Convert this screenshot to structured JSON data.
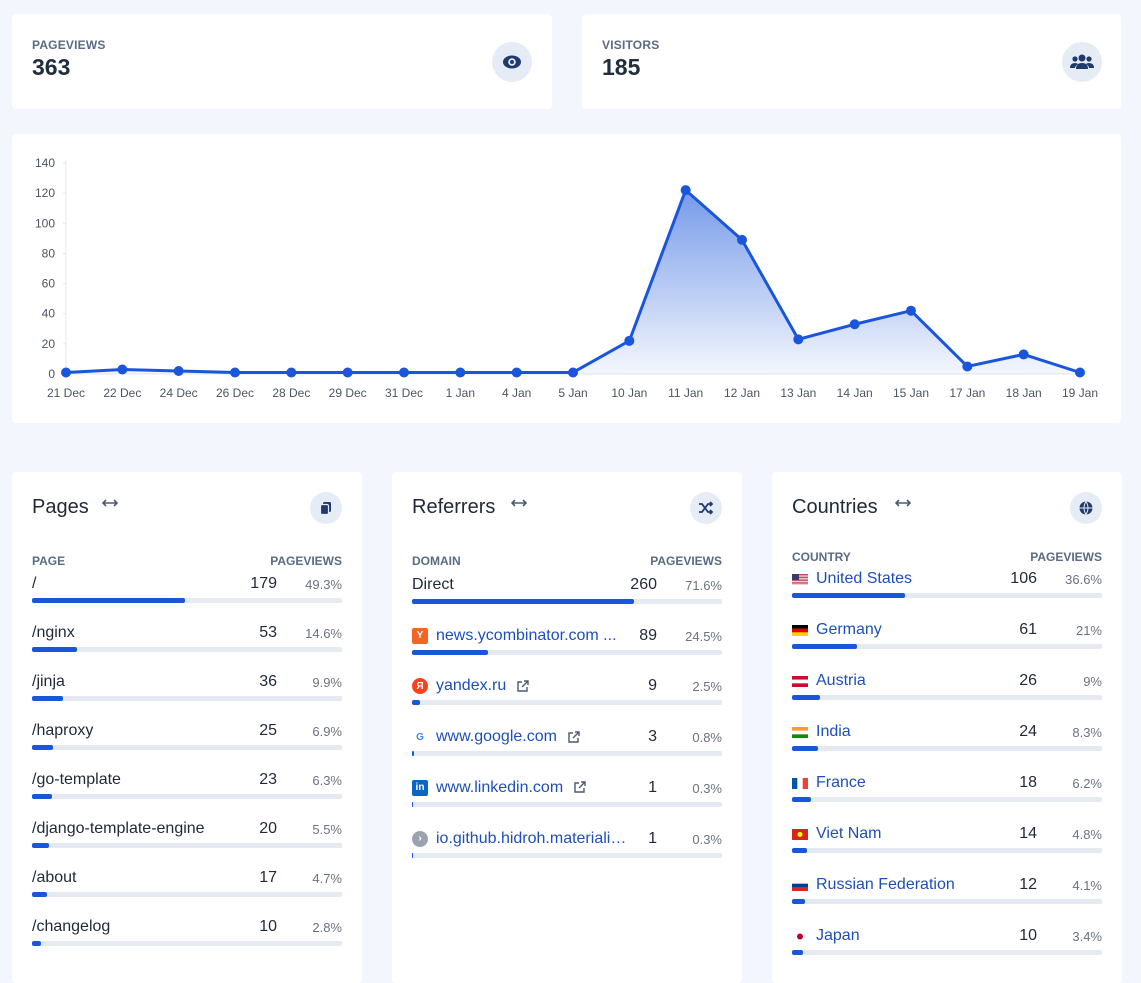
{
  "stats": [
    {
      "label": "PAGEVIEWS",
      "value": 363
    },
    {
      "label": "VISITORS",
      "value": 185
    }
  ],
  "chart_data": {
    "type": "line",
    "categories": [
      "21 Dec",
      "22 Dec",
      "24 Dec",
      "26 Dec",
      "28 Dec",
      "29 Dec",
      "31 Dec",
      "1 Jan",
      "4 Jan",
      "5 Jan",
      "10 Jan",
      "11 Jan",
      "12 Jan",
      "13 Jan",
      "14 Jan",
      "15 Jan",
      "17 Jan",
      "18 Jan",
      "19 Jan"
    ],
    "values": [
      1,
      3,
      2,
      1,
      1,
      1,
      1,
      1,
      1,
      1,
      22,
      122,
      89,
      23,
      33,
      42,
      5,
      13,
      1
    ],
    "color": "#1a56db",
    "ylim": [
      0,
      140
    ],
    "yticks": [
      0,
      20,
      40,
      60,
      80,
      100,
      120,
      140
    ],
    "grid": false,
    "area": true
  },
  "pages": {
    "title": "Pages",
    "columns": [
      "PAGE",
      "PAGEVIEWS"
    ],
    "rows": [
      {
        "name": "/",
        "value": 179,
        "share": 49.3,
        "share_label": "49.3%"
      },
      {
        "name": "/nginx",
        "value": 53,
        "share": 14.6,
        "share_label": "14.6%"
      },
      {
        "name": "/jinja",
        "value": 36,
        "share": 9.9,
        "share_label": "9.9%"
      },
      {
        "name": "/haproxy",
        "value": 25,
        "share": 6.9,
        "share_label": "6.9%"
      },
      {
        "name": "/go-template",
        "value": 23,
        "share": 6.3,
        "share_label": "6.3%"
      },
      {
        "name": "/django-template-engine",
        "value": 20,
        "share": 5.5,
        "share_label": "5.5%"
      },
      {
        "name": "/about",
        "value": 17,
        "share": 4.7,
        "share_label": "4.7%"
      },
      {
        "name": "/changelog",
        "value": 10,
        "share": 2.8,
        "share_label": "2.8%"
      }
    ]
  },
  "referrers": {
    "title": "Referrers",
    "columns": [
      "DOMAIN",
      "PAGEVIEWS"
    ],
    "rows": [
      {
        "name": "Direct",
        "value": 260,
        "share": 71.6,
        "share_label": "71.6%"
      },
      {
        "name": "news.ycombinator.com ...",
        "value": 89,
        "share": 24.5,
        "share_label": "24.5%"
      },
      {
        "name": "yandex.ru",
        "value": 9,
        "share": 2.5,
        "share_label": "2.5%"
      },
      {
        "name": "www.google.com",
        "value": 3,
        "share": 0.8,
        "share_label": "0.8%"
      },
      {
        "name": "www.linkedin.com",
        "value": 1,
        "share": 0.3,
        "share_label": "0.3%"
      },
      {
        "name": "io.github.hidroh.materiali…",
        "value": 1,
        "share": 0.3,
        "share_label": "0.3%"
      }
    ]
  },
  "countries": {
    "title": "Countries",
    "columns": [
      "COUNTRY",
      "PAGEVIEWS"
    ],
    "rows": [
      {
        "name": "United States",
        "value": 106,
        "share": 36.6,
        "share_label": "36.6%"
      },
      {
        "name": "Germany",
        "value": 61,
        "share": 21,
        "share_label": "21%"
      },
      {
        "name": "Austria",
        "value": 26,
        "share": 9,
        "share_label": "9%"
      },
      {
        "name": "India",
        "value": 24,
        "share": 8.3,
        "share_label": "8.3%"
      },
      {
        "name": "France",
        "value": 18,
        "share": 6.2,
        "share_label": "6.2%"
      },
      {
        "name": "Viet Nam",
        "value": 14,
        "share": 4.8,
        "share_label": "4.8%"
      },
      {
        "name": "Russian Federation",
        "value": 12,
        "share": 4.1,
        "share_label": "4.1%"
      },
      {
        "name": "Japan",
        "value": 10,
        "share": 3.4,
        "share_label": "3.4%"
      }
    ]
  }
}
